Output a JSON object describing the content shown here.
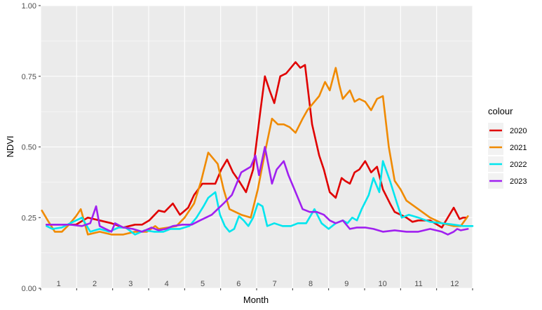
{
  "chart_data": {
    "type": "line",
    "title": "",
    "xlabel": "Month",
    "ylabel": "NDVI",
    "ylim": [
      0,
      1
    ],
    "yticks": [
      "0.00",
      "0.25",
      "0.50",
      "0.75",
      "1.00"
    ],
    "ytick_values": [
      0,
      0.25,
      0.5,
      0.75,
      1.0
    ],
    "xlim": [
      0,
      366
    ],
    "months": [
      "1",
      "2",
      "3",
      "4",
      "5",
      "6",
      "7",
      "8",
      "9",
      "10",
      "11",
      "12"
    ],
    "grid": true,
    "legend": {
      "title": "colour",
      "position": "right"
    },
    "series": [
      {
        "name": "2020",
        "color": "#e00000",
        "x": [
          5,
          20,
          30,
          40,
          50,
          60,
          70,
          80,
          86,
          92,
          100,
          105,
          112,
          118,
          125,
          130,
          137,
          143,
          148,
          153,
          158,
          163,
          168,
          174,
          180,
          186,
          190,
          194,
          198,
          203,
          208,
          212,
          216,
          220,
          224,
          230,
          236,
          240,
          245,
          250,
          255,
          258,
          262,
          266,
          270,
          275,
          280,
          285,
          290,
          296,
          300,
          305,
          310,
          315,
          320,
          330,
          340,
          350,
          355,
          358,
          361
        ],
        "y": [
          0.225,
          0.225,
          0.225,
          0.25,
          0.24,
          0.23,
          0.215,
          0.225,
          0.225,
          0.24,
          0.275,
          0.27,
          0.3,
          0.26,
          0.285,
          0.33,
          0.37,
          0.37,
          0.37,
          0.42,
          0.455,
          0.41,
          0.38,
          0.34,
          0.42,
          0.62,
          0.75,
          0.7,
          0.655,
          0.75,
          0.76,
          0.78,
          0.8,
          0.78,
          0.79,
          0.58,
          0.47,
          0.42,
          0.34,
          0.32,
          0.39,
          0.38,
          0.37,
          0.41,
          0.42,
          0.45,
          0.41,
          0.43,
          0.35,
          0.3,
          0.27,
          0.26,
          0.25,
          0.235,
          0.24,
          0.24,
          0.215,
          0.285,
          0.245,
          0.25,
          0.25
        ]
      },
      {
        "name": "2021",
        "color": "#f08a00",
        "x": [
          1,
          6,
          12,
          18,
          24,
          30,
          34,
          40,
          50,
          60,
          70,
          80,
          90,
          97,
          100,
          108,
          115,
          122,
          130,
          136,
          142,
          146,
          150,
          155,
          160,
          165,
          170,
          178,
          184,
          190,
          196,
          201,
          206,
          211,
          216,
          222,
          226,
          230,
          236,
          241,
          245,
          250,
          253,
          256,
          262,
          266,
          270,
          275,
          280,
          285,
          290,
          295,
          300,
          305,
          310,
          320,
          330,
          340,
          350,
          356,
          362
        ],
        "y": [
          0.275,
          0.24,
          0.2,
          0.2,
          0.225,
          0.255,
          0.28,
          0.19,
          0.2,
          0.19,
          0.19,
          0.2,
          0.2,
          0.22,
          0.21,
          0.215,
          0.22,
          0.25,
          0.3,
          0.38,
          0.48,
          0.46,
          0.44,
          0.35,
          0.28,
          0.27,
          0.26,
          0.25,
          0.35,
          0.48,
          0.6,
          0.58,
          0.58,
          0.57,
          0.55,
          0.6,
          0.63,
          0.65,
          0.68,
          0.73,
          0.7,
          0.78,
          0.72,
          0.67,
          0.7,
          0.66,
          0.67,
          0.66,
          0.63,
          0.67,
          0.68,
          0.5,
          0.38,
          0.35,
          0.31,
          0.28,
          0.25,
          0.23,
          0.22,
          0.22,
          0.255
        ]
      },
      {
        "name": "2022",
        "color": "#00e5ee",
        "x": [
          5,
          10,
          18,
          25,
          35,
          42,
          50,
          58,
          66,
          72,
          80,
          88,
          96,
          104,
          110,
          118,
          126,
          132,
          138,
          142,
          148,
          152,
          156,
          160,
          164,
          168,
          172,
          176,
          180,
          184,
          188,
          192,
          198,
          205,
          212,
          218,
          225,
          232,
          238,
          244,
          250,
          256,
          260,
          264,
          268,
          272,
          278,
          282,
          287,
          290,
          296,
          302,
          306,
          312,
          320,
          330,
          340,
          350,
          358,
          366
        ],
        "y": [
          0.22,
          0.21,
          0.215,
          0.23,
          0.25,
          0.2,
          0.21,
          0.2,
          0.215,
          0.215,
          0.19,
          0.205,
          0.2,
          0.2,
          0.21,
          0.21,
          0.22,
          0.25,
          0.29,
          0.32,
          0.34,
          0.26,
          0.22,
          0.2,
          0.21,
          0.255,
          0.24,
          0.22,
          0.25,
          0.3,
          0.29,
          0.22,
          0.23,
          0.22,
          0.22,
          0.23,
          0.23,
          0.28,
          0.23,
          0.21,
          0.23,
          0.24,
          0.23,
          0.25,
          0.24,
          0.28,
          0.33,
          0.39,
          0.34,
          0.45,
          0.38,
          0.3,
          0.25,
          0.26,
          0.25,
          0.235,
          0.23,
          0.225,
          0.22,
          0.22
        ]
      },
      {
        "name": "2023",
        "color": "#a020f0",
        "x": [
          5,
          15,
          25,
          35,
          42,
          47,
          50,
          55,
          60,
          63,
          70,
          78,
          86,
          94,
          100,
          106,
          112,
          120,
          128,
          135,
          145,
          155,
          162,
          170,
          178,
          182,
          185,
          190,
          196,
          200,
          206,
          210,
          215,
          222,
          228,
          234,
          240,
          245,
          250,
          256,
          262,
          268,
          275,
          282,
          290,
          300,
          310,
          320,
          330,
          340,
          345,
          350,
          353,
          356,
          362
        ],
        "y": [
          0.225,
          0.225,
          0.225,
          0.22,
          0.23,
          0.29,
          0.22,
          0.21,
          0.2,
          0.23,
          0.215,
          0.21,
          0.2,
          0.215,
          0.205,
          0.21,
          0.22,
          0.225,
          0.225,
          0.24,
          0.26,
          0.3,
          0.33,
          0.41,
          0.43,
          0.47,
          0.4,
          0.5,
          0.37,
          0.42,
          0.45,
          0.4,
          0.35,
          0.28,
          0.27,
          0.27,
          0.26,
          0.24,
          0.23,
          0.24,
          0.21,
          0.215,
          0.215,
          0.21,
          0.2,
          0.205,
          0.2,
          0.2,
          0.21,
          0.2,
          0.19,
          0.2,
          0.21,
          0.205,
          0.21
        ]
      }
    ]
  }
}
